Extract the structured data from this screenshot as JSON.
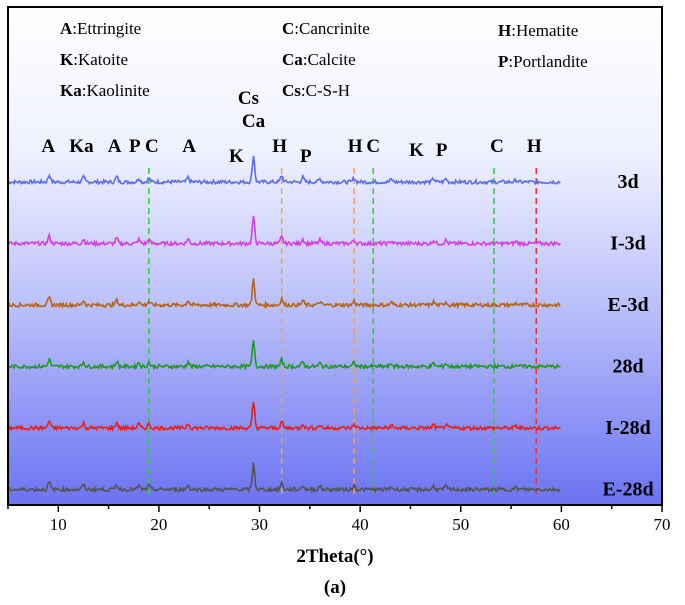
{
  "chart_data": {
    "type": "line",
    "title": "",
    "xlabel": "2Theta(°)",
    "caption": "(a)",
    "ylabel": "",
    "xlim": [
      5,
      70
    ],
    "x_ticks": [
      "10",
      "20",
      "30",
      "40",
      "50",
      "60",
      "70"
    ],
    "series": [
      {
        "name": "3d",
        "color": "#5b6ef0",
        "offset": 5
      },
      {
        "name": "I-3d",
        "color": "#d63fe0",
        "offset": 4
      },
      {
        "name": "E-3d",
        "color": "#b5641a",
        "offset": 3
      },
      {
        "name": "28d",
        "color": "#1f9a1f",
        "offset": 2
      },
      {
        "name": "I-28d",
        "color": "#e8201c",
        "offset": 1
      },
      {
        "name": "E-28d",
        "color": "#555555",
        "offset": 0
      }
    ],
    "peaks": [
      {
        "x": 9.1,
        "h": 0.55
      },
      {
        "x": 12.5,
        "h": 0.35
      },
      {
        "x": 15.8,
        "h": 0.4
      },
      {
        "x": 18.0,
        "h": 0.3
      },
      {
        "x": 19.0,
        "h": 0.3
      },
      {
        "x": 22.9,
        "h": 0.35
      },
      {
        "x": 29.4,
        "h": 2.0
      },
      {
        "x": 32.2,
        "h": 0.5
      },
      {
        "x": 34.3,
        "h": 0.35
      },
      {
        "x": 36.0,
        "h": 0.25
      },
      {
        "x": 39.4,
        "h": 0.3
      },
      {
        "x": 43.1,
        "h": 0.2
      },
      {
        "x": 47.3,
        "h": 0.25
      },
      {
        "x": 48.5,
        "h": 0.25
      },
      {
        "x": 55.5,
        "h": 0.15
      }
    ],
    "reference_lines": [
      {
        "x": 19.0,
        "color": "#33cc33"
      },
      {
        "x": 32.2,
        "color": "#f0a050"
      },
      {
        "x": 39.4,
        "color": "#f0a050"
      },
      {
        "x": 41.3,
        "color": "#33cc33"
      },
      {
        "x": 53.3,
        "color": "#33cc33"
      },
      {
        "x": 57.5,
        "color": "#e83030"
      }
    ],
    "peak_labels": [
      {
        "text": "A",
        "x": 9.0
      },
      {
        "text": "Ka",
        "x": 12.3
      },
      {
        "text": "A",
        "x": 15.6
      },
      {
        "text": "P",
        "x": 17.6
      },
      {
        "text": "C",
        "x": 19.3
      },
      {
        "text": "A",
        "x": 23.0
      },
      {
        "text": "K",
        "x": 27.7
      },
      {
        "text": "Cs",
        "x": 28.9
      },
      {
        "text": "Ca",
        "x": 29.4
      },
      {
        "text": "H",
        "x": 32.0
      },
      {
        "text": "P",
        "x": 34.6
      },
      {
        "text": "H",
        "x": 39.5
      },
      {
        "text": "C",
        "x": 41.3
      },
      {
        "text": "K",
        "x": 45.6
      },
      {
        "text": "P",
        "x": 48.1
      },
      {
        "text": "C",
        "x": 53.6
      },
      {
        "text": "H",
        "x": 57.3
      }
    ],
    "legend": [
      {
        "abbr": "A",
        "name": ":Ettringite"
      },
      {
        "abbr": "K",
        "name": ":Katoite"
      },
      {
        "abbr": "Ka",
        "name": ":Kaolinite"
      },
      {
        "abbr": "C",
        "name": ":Cancrinite"
      },
      {
        "abbr": "Ca",
        "name": ":Calcite"
      },
      {
        "abbr": "Cs",
        "name": ":C-S-H"
      },
      {
        "abbr": "H",
        "name": ":Hematite"
      },
      {
        "abbr": "P",
        "name": ":Portlandite"
      }
    ]
  }
}
